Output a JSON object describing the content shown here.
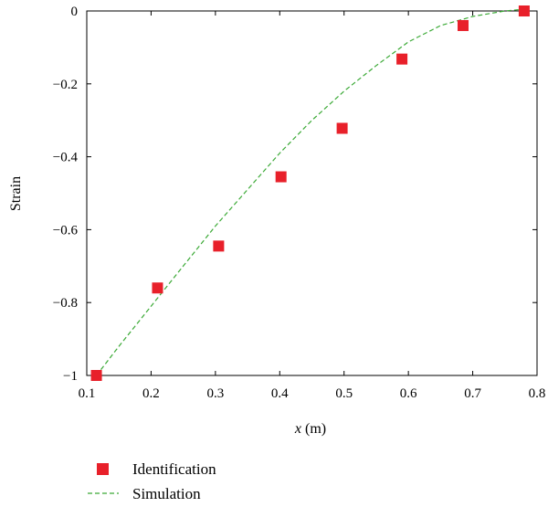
{
  "chart_data": {
    "type": "scatter",
    "xlabel": {
      "var": "x",
      "unit": " (m)"
    },
    "ylabel": "Strain",
    "xlim": [
      0.1,
      0.8
    ],
    "ylim": [
      -1,
      0
    ],
    "xticks": [
      "0.1",
      "0.2",
      "0.3",
      "0.4",
      "0.5",
      "0.6",
      "0.7",
      "0.8"
    ],
    "yticks": [
      "0",
      "−0.2",
      "−0.4",
      "−0.6",
      "−0.8",
      "−1"
    ],
    "series": [
      {
        "name": "Identification",
        "kind": "markers",
        "color": "#e8202a",
        "x": [
          0.115,
          0.21,
          0.305,
          0.402,
          0.497,
          0.59,
          0.685,
          0.78
        ],
        "y": [
          -1.0,
          -0.76,
          -0.645,
          -0.455,
          -0.322,
          -0.132,
          -0.04,
          0.0
        ]
      },
      {
        "name": "Simulation",
        "kind": "dashed-line",
        "color": "#3aa935",
        "x": [
          0.115,
          0.15,
          0.2,
          0.25,
          0.3,
          0.35,
          0.4,
          0.45,
          0.5,
          0.55,
          0.6,
          0.65,
          0.7,
          0.75,
          0.78
        ],
        "y": [
          -1.0,
          -0.92,
          -0.81,
          -0.7,
          -0.59,
          -0.49,
          -0.39,
          -0.3,
          -0.22,
          -0.15,
          -0.085,
          -0.04,
          -0.015,
          0.0,
          0.005
        ]
      }
    ],
    "grid": false,
    "legend_position": "bottom-left, below plot"
  }
}
